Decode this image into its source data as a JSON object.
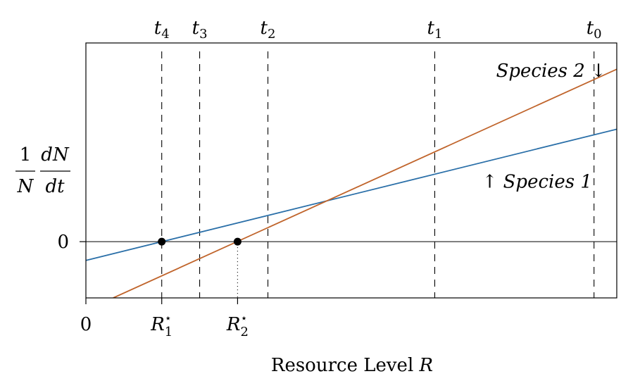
{
  "chart_data": {
    "type": "line",
    "xlabel": "Resource Level",
    "xlabel_symbol": "R",
    "ylabel": {
      "numerator_left": "1",
      "denominator_left": "N",
      "numerator_right": "dN",
      "denominator_right": "dt"
    },
    "xlim": [
      0,
      7
    ],
    "ylim": [
      -0.75,
      2.65
    ],
    "x_ticks": [
      {
        "value": 0,
        "label": "0"
      },
      {
        "value": 1,
        "label": "R",
        "sub": "1",
        "sup": "⋆"
      },
      {
        "value": 2,
        "label": "R",
        "sub": "2",
        "sup": "⋆"
      }
    ],
    "y_ticks": [
      {
        "value": 0,
        "label": "0"
      }
    ],
    "zero_line": true,
    "series": [
      {
        "name": "Species 1",
        "color": "#2a6fa8",
        "x": [
          0,
          7
        ],
        "y": [
          -0.25,
          1.5
        ],
        "label": "Species 1",
        "arrow": "↑",
        "arrow_side": "left",
        "label_at": [
          5.0,
          0.72
        ]
      },
      {
        "name": "Species 2",
        "color": "#c0642b",
        "x": [
          0.36,
          7
        ],
        "y": [
          -0.75,
          2.3
        ],
        "label": "Species 2",
        "arrow": "↓",
        "arrow_side": "right",
        "label_at": [
          5.0,
          2.2
        ]
      }
    ],
    "equilibria": [
      {
        "x": 1,
        "y": 0
      },
      {
        "x": 2,
        "y": 0
      }
    ],
    "time_markers": [
      {
        "label": "t",
        "sub": "4",
        "x": 1.0
      },
      {
        "label": "t",
        "sub": "3",
        "x": 1.5
      },
      {
        "label": "t",
        "sub": "2",
        "x": 2.4
      },
      {
        "label": "t",
        "sub": "1",
        "x": 4.6
      },
      {
        "label": "t",
        "sub": "0",
        "x": 6.7
      }
    ],
    "grid": false,
    "legend": "none"
  }
}
